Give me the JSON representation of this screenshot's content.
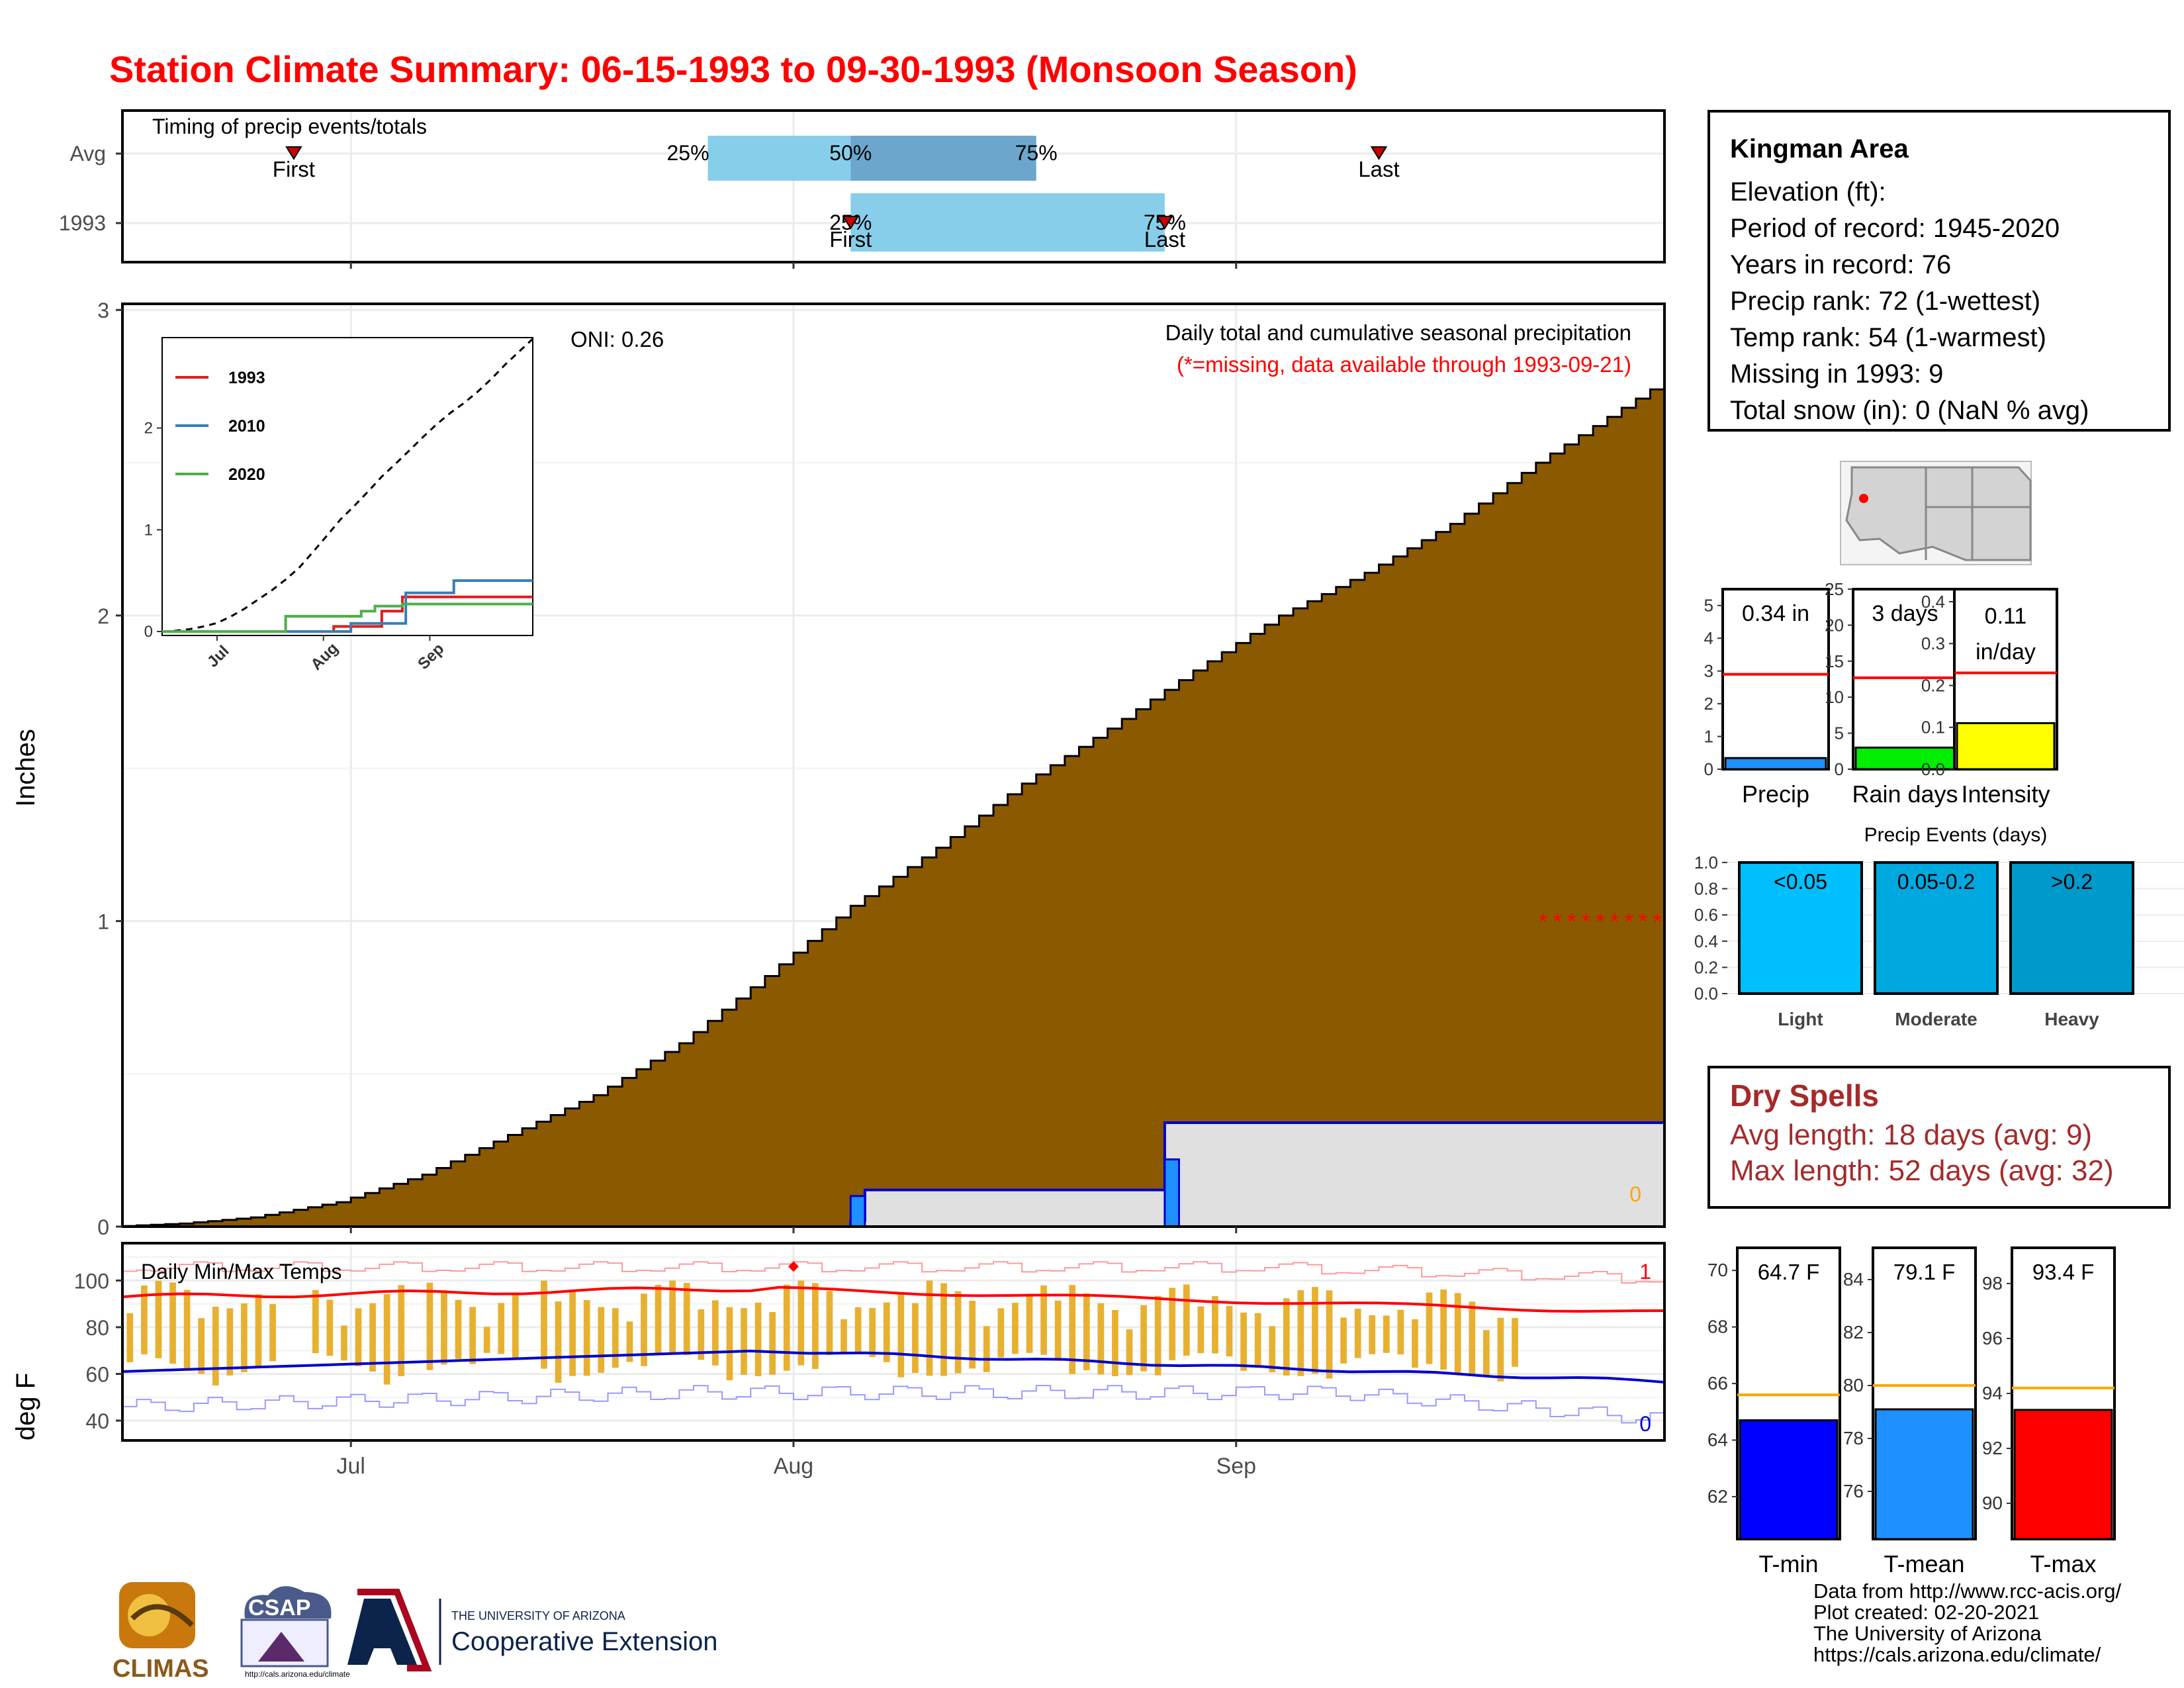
{
  "title": "Station Climate Summary: 06-15-1993 to 09-30-1993 (Monsoon Season)",
  "timing": {
    "label": "Timing of precip events/totals",
    "rows": [
      "Avg",
      "1993"
    ],
    "avg": {
      "first": "06-27",
      "q25": "07-26",
      "q50": "08-05",
      "q75": "08-18",
      "last": "09-11"
    },
    "y1993": {
      "first": "08-05",
      "q25": "08-05",
      "q50": "08-27",
      "q75": "08-27",
      "last": "08-27"
    },
    "pct_labels": [
      "25%",
      "50%",
      "75%"
    ],
    "first_label": "First",
    "last_label": "Last"
  },
  "station": {
    "name": "Kingman Area",
    "lines": [
      "Elevation (ft):",
      "Period of record: 1945-2020",
      "Years in record: 76",
      "Precip rank: 72 (1-wettest)",
      "Temp rank: 54 (1-warmest)",
      "Missing in 1993: 9",
      "Total snow (in): 0 (NaN % avg)"
    ]
  },
  "precip_panel": {
    "ylabel": "Inches",
    "note1": "Daily total and cumulative seasonal precipitation",
    "note2": "(*=missing, data available through 1993-09-21)",
    "oni": "ONI: 0.26",
    "zero_label": "0",
    "y_ticks": [
      0,
      1,
      2,
      3
    ],
    "x_ticks": [
      "Jul",
      "Aug",
      "Sep"
    ],
    "missing_marker_value": 1.0,
    "missing_days": [
      "09-22",
      "09-23",
      "09-24",
      "09-25",
      "09-26",
      "09-27",
      "09-28",
      "09-29",
      "09-30"
    ]
  },
  "inset": {
    "legend": [
      {
        "name": "1993",
        "color": "#e41a1c"
      },
      {
        "name": "2010",
        "color": "#377eb8"
      },
      {
        "name": "2020",
        "color": "#4daf4a"
      }
    ],
    "y_ticks": [
      "0",
      "1",
      "2"
    ],
    "x_ticks": [
      "Jul",
      "Aug",
      "Sep"
    ]
  },
  "gauges": [
    {
      "value_label": "0.34 in",
      "name": "Precip",
      "value": 0.34,
      "avg": 2.9,
      "max": 5.5,
      "ticks": [
        "0",
        "1",
        "2",
        "3",
        "4",
        "5"
      ],
      "color": "#1e90ff"
    },
    {
      "value_label": "3 days",
      "name": "Rain days",
      "value": 3,
      "avg": 12.7,
      "max": 25,
      "ticks": [
        "0",
        "5",
        "10",
        "15",
        "20",
        "25"
      ],
      "color": "#00ee00"
    },
    {
      "value_label": "0.11 in/day",
      "value_l1": "0.11",
      "value_l2": "in/day",
      "name": "Intensity",
      "value": 0.11,
      "avg": 0.23,
      "max": 0.43,
      "ticks": [
        "0.0",
        "0.1",
        "0.2",
        "0.3",
        "0.4"
      ],
      "color": "#ffff00"
    }
  ],
  "events": {
    "title": "Precip Events (days)",
    "y_ticks": [
      "0.0",
      "0.2",
      "0.4",
      "0.6",
      "0.8",
      "1.0"
    ],
    "bars": [
      {
        "inner": "<0.05",
        "axis": "Light",
        "value": 1.0,
        "color": "#00bfff"
      },
      {
        "inner": "0.05-0.2",
        "axis": "Moderate",
        "value": 1.0,
        "color": "#00a8e0"
      },
      {
        "inner": ">0.2",
        "axis": "Heavy",
        "value": 1.0,
        "color": "#0099cc"
      }
    ]
  },
  "dry_spells": {
    "title": "Dry Spells",
    "avg_line": "Avg length: 18 days (avg: 9)",
    "max_line": "Max length: 52 days (avg: 32)"
  },
  "temps": {
    "label": "Daily Min/Max Temps",
    "ylabel": "deg F",
    "y_ticks": [
      "40",
      "60",
      "80",
      "100"
    ],
    "x_ticks": [
      "Jul",
      "Aug",
      "Sep"
    ],
    "corner_hi": "1",
    "corner_lo": "0",
    "gauges": [
      {
        "value_label": "64.7 F",
        "name": "T-min",
        "value": 64.7,
        "avg": 65.6,
        "min": 60.5,
        "max": 70.8,
        "ticks": [
          "62",
          "64",
          "66",
          "68",
          "70"
        ],
        "color": "#0000ff"
      },
      {
        "value_label": "79.1 F",
        "name": "T-mean",
        "value": 79.1,
        "avg": 80.0,
        "min": 74.2,
        "max": 85.2,
        "ticks": [
          "76",
          "78",
          "80",
          "82",
          "84"
        ],
        "color": "#1e90ff"
      },
      {
        "value_label": "93.4 F",
        "name": "T-max",
        "value": 93.4,
        "avg": 94.2,
        "min": 88.7,
        "max": 99.3,
        "ticks": [
          "90",
          "92",
          "94",
          "96",
          "98"
        ],
        "color": "#ff0000"
      }
    ]
  },
  "logos": {
    "climas": "CLIMAS",
    "csap": "CSAP",
    "csap_url": "http://cals.arizona.edu/climate",
    "ua_small": "THE UNIVERSITY OF ARIZONA",
    "ua_big": "Cooperative Extension"
  },
  "footer": [
    "Data from http://www.rcc-acis.org/",
    "Plot created: 02-20-2021",
    "The University of Arizona",
    "https://cals.arizona.edu/climate/"
  ],
  "colors": {
    "title": "#ff0000",
    "cumulative_fill": "#8b5a00",
    "avg_cumulative_fill": "#e0e0e0",
    "avg_outline": "#0000cd",
    "daily_bar": "#1e90ff",
    "temp_bar": "#e8b030",
    "avg_max": "#ff0000",
    "avg_min": "#0000cd",
    "dry_spell": "#a52a2a",
    "gauge_avg_precip": "#ff0000",
    "gauge_avg_temp": "#ffa500"
  }
}
